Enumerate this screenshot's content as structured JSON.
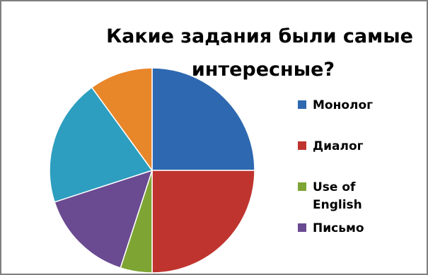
{
  "chart_data": {
    "type": "pie",
    "title_lines": [
      "Какие задания были самые",
      "интересные?"
    ],
    "categories": [
      "Монолог",
      "Диалог",
      "Use of English",
      "Письмо",
      "",
      ""
    ],
    "values": [
      25,
      25,
      5,
      15,
      20,
      10
    ],
    "colors": [
      "#2e68b0",
      "#c0342f",
      "#7ea534",
      "#6a4a91",
      "#2d9ebf",
      "#e8862a"
    ],
    "legend": [
      {
        "lines": [
          "Монолог"
        ],
        "color": "#2e68b0"
      },
      {
        "lines": [
          "Диалог"
        ],
        "color": "#c0342f"
      },
      {
        "lines": [
          "Use of",
          "English"
        ],
        "color": "#7ea534"
      },
      {
        "lines": [
          "Письмо"
        ],
        "color": "#6a4a91"
      }
    ],
    "legend_position": "right"
  }
}
